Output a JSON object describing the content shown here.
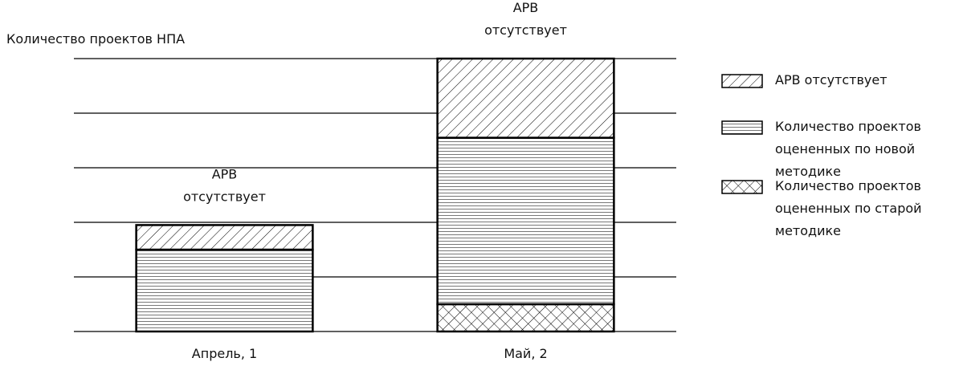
{
  "chart_data": {
    "type": "stacked_bar",
    "ylabel": "Количество проектов НПА",
    "categories": [
      "Апрель, 1",
      "Май, 2"
    ],
    "series": [
      {
        "name": "АРВ отсутствует",
        "color": "#000000",
        "pattern": "diagonal",
        "values": [
          0.45,
          1.45
        ]
      },
      {
        "name": "Количество проектов оцененных по новой методике",
        "color": "#000000",
        "pattern": "horizontal",
        "values": [
          1.5,
          3.05
        ]
      },
      {
        "name": "Количество проектов оцененных по старой методике",
        "color": "#000000",
        "pattern": "cross",
        "values": [
          0,
          0.5
        ]
      }
    ],
    "bar_labels": [
      "АРВ отсутствует",
      "АРВ отсутствует"
    ],
    "ylim": [
      0,
      5
    ],
    "yticks": [
      0,
      1,
      2,
      3,
      4,
      5
    ],
    "grid": true,
    "legend": "right"
  }
}
